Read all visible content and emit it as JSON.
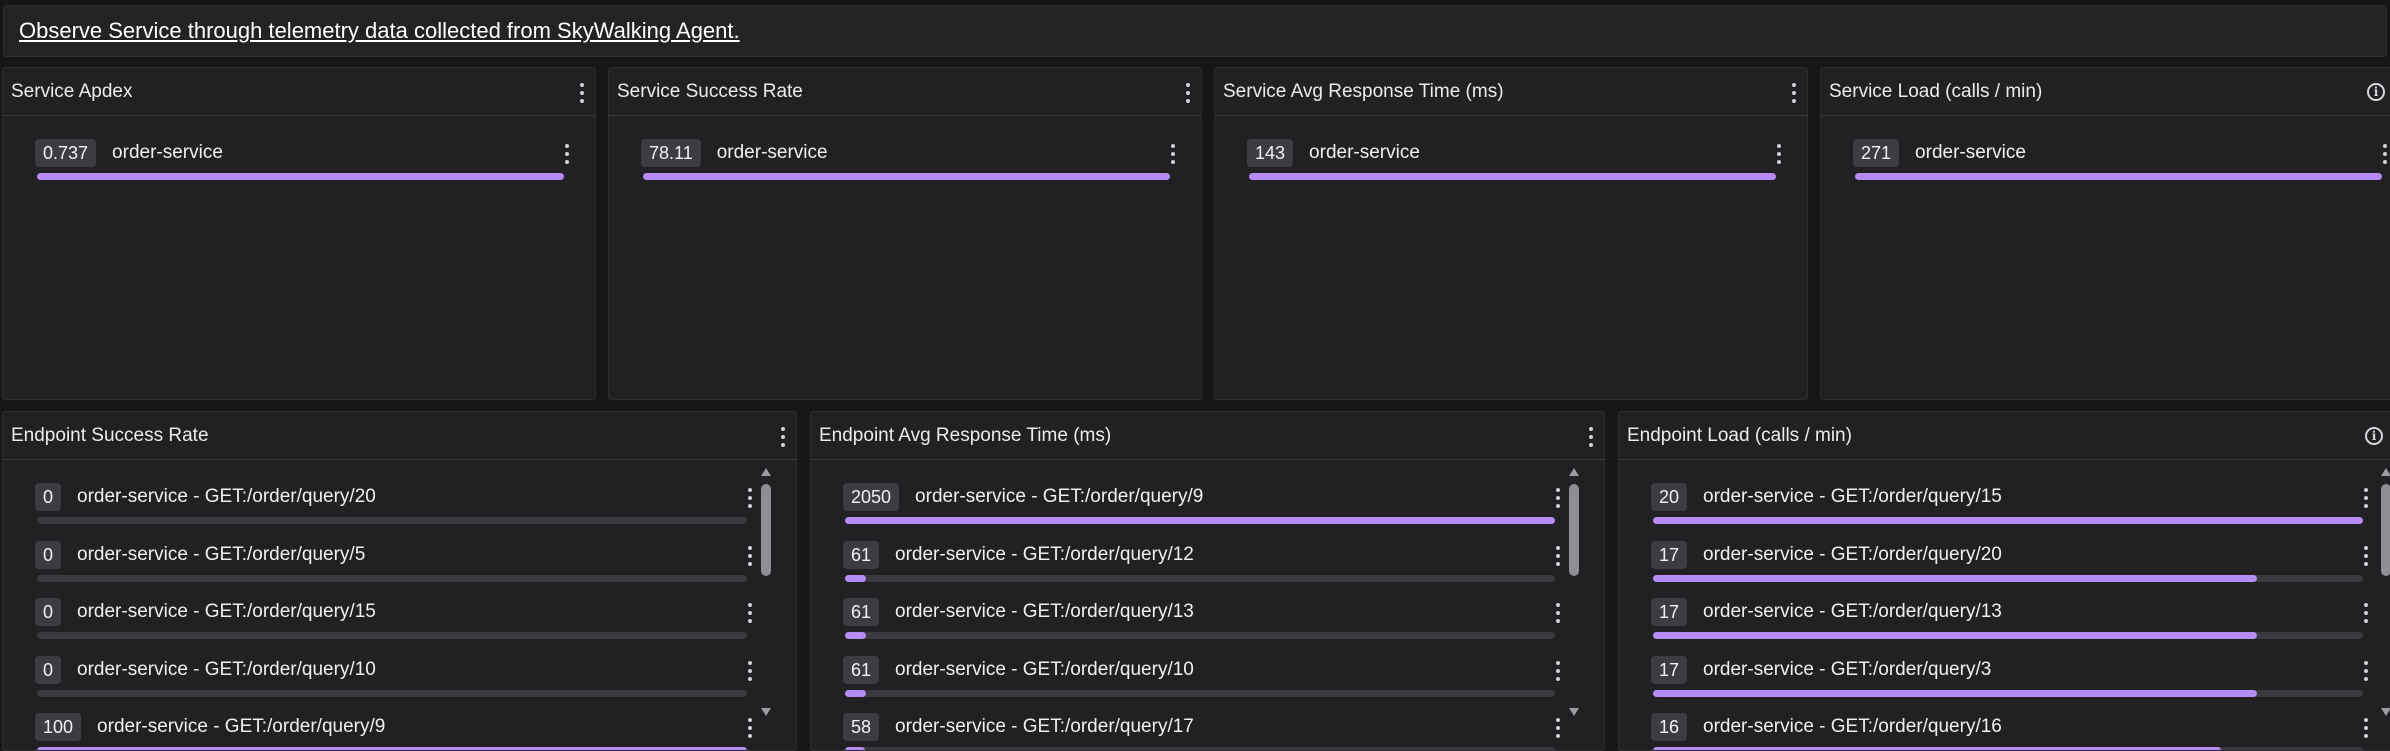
{
  "banner": {
    "text": "Observe Service through telemetry data collected from SkyWalking Agent."
  },
  "service_panels": [
    {
      "title": "Service Apdex",
      "badge": "0.737",
      "label": "order-service",
      "fill": 1.0,
      "info": false
    },
    {
      "title": "Service Success Rate",
      "badge": "78.11",
      "label": "order-service",
      "fill": 1.0,
      "info": false
    },
    {
      "title": "Service Avg Response Time (ms)",
      "badge": "143",
      "label": "order-service",
      "fill": 1.0,
      "info": false
    },
    {
      "title": "Service Load (calls / min)",
      "badge": "271",
      "label": "order-service",
      "fill": 1.0,
      "info": true
    }
  ],
  "endpoint_panels": [
    {
      "title": "Endpoint Success Rate",
      "info": false,
      "items": [
        {
          "badge": "0",
          "label": "order-service - GET:/order/query/20",
          "fill": 0.0
        },
        {
          "badge": "0",
          "label": "order-service - GET:/order/query/5",
          "fill": 0.0
        },
        {
          "badge": "0",
          "label": "order-service - GET:/order/query/15",
          "fill": 0.0
        },
        {
          "badge": "0",
          "label": "order-service - GET:/order/query/10",
          "fill": 0.0
        },
        {
          "badge": "100",
          "label": "order-service - GET:/order/query/9",
          "fill": 1.0
        }
      ]
    },
    {
      "title": "Endpoint Avg Response Time (ms)",
      "info": false,
      "items": [
        {
          "badge": "2050",
          "label": "order-service - GET:/order/query/9",
          "fill": 1.0
        },
        {
          "badge": "61",
          "label": "order-service - GET:/order/query/12",
          "fill": 0.03
        },
        {
          "badge": "61",
          "label": "order-service - GET:/order/query/13",
          "fill": 0.03
        },
        {
          "badge": "61",
          "label": "order-service - GET:/order/query/10",
          "fill": 0.03
        },
        {
          "badge": "58",
          "label": "order-service - GET:/order/query/17",
          "fill": 0.028
        }
      ]
    },
    {
      "title": "Endpoint Load (calls / min)",
      "info": true,
      "items": [
        {
          "badge": "20",
          "label": "order-service - GET:/order/query/15",
          "fill": 1.0
        },
        {
          "badge": "17",
          "label": "order-service - GET:/order/query/20",
          "fill": 0.85
        },
        {
          "badge": "17",
          "label": "order-service - GET:/order/query/13",
          "fill": 0.85
        },
        {
          "badge": "17",
          "label": "order-service - GET:/order/query/3",
          "fill": 0.85
        },
        {
          "badge": "16",
          "label": "order-service - GET:/order/query/16",
          "fill": 0.8
        }
      ]
    }
  ]
}
